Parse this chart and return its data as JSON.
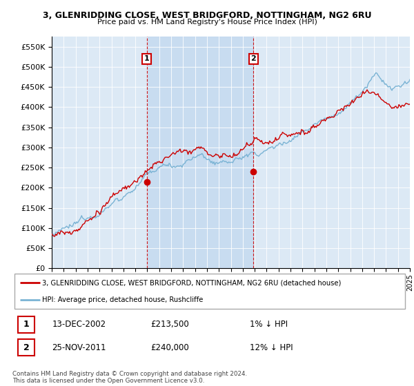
{
  "title": "3, GLENRIDDING CLOSE, WEST BRIDGFORD, NOTTINGHAM, NG2 6RU",
  "subtitle": "Price paid vs. HM Land Registry's House Price Index (HPI)",
  "legend_line1": "3, GLENRIDDING CLOSE, WEST BRIDGFORD, NOTTINGHAM, NG2 6RU (detached house)",
  "legend_line2": "HPI: Average price, detached house, Rushcliffe",
  "annotation1_date": "13-DEC-2002",
  "annotation1_price": "£213,500",
  "annotation1_hpi": "1% ↓ HPI",
  "annotation2_date": "25-NOV-2011",
  "annotation2_price": "£240,000",
  "annotation2_hpi": "12% ↓ HPI",
  "footnote": "Contains HM Land Registry data © Crown copyright and database right 2024.\nThis data is licensed under the Open Government Licence v3.0.",
  "ylim": [
    0,
    575000
  ],
  "yticks": [
    0,
    50000,
    100000,
    150000,
    200000,
    250000,
    300000,
    350000,
    400000,
    450000,
    500000,
    550000
  ],
  "background_color": "#dce9f5",
  "hpi_color": "#7ab3d4",
  "price_color": "#cc0000",
  "vline_color": "#cc0000",
  "sale1_year": 2002.95,
  "sale1_value": 213500,
  "sale2_year": 2011.9,
  "sale2_value": 240000,
  "x_start_year": 1995,
  "x_end_year": 2025,
  "shade_color": "#c5daf0"
}
